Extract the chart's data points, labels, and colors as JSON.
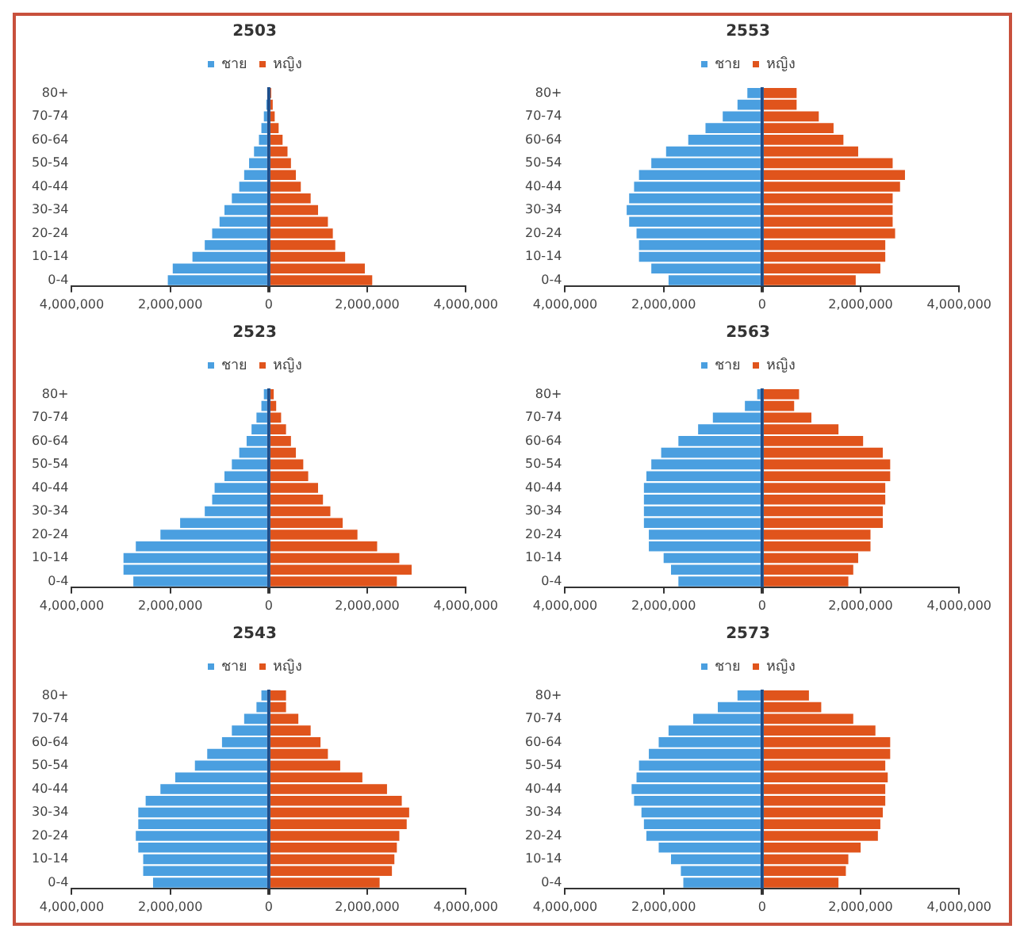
{
  "chart_data": [
    {
      "type": "bar",
      "title": "2503",
      "orientation": "horizontal",
      "stacked": true,
      "ref_lines": [
        {
          "axis": "x",
          "value": 0,
          "color": "#1f4e8a"
        }
      ],
      "legend": "top",
      "grid": false,
      "categories": [
        "80+",
        null,
        "70-74",
        null,
        "60-64",
        null,
        "50-54",
        null,
        "40-44",
        null,
        "30-34",
        null,
        "20-24",
        null,
        "10-14",
        null,
        "0-4"
      ],
      "xlim": [
        -4000000,
        4000000
      ],
      "xticks": [
        {
          "value": -4000000,
          "label": "4,000,000"
        },
        {
          "value": -2000000,
          "label": "2,000,000"
        },
        {
          "value": 0,
          "label": "0"
        },
        {
          "value": 2000000,
          "label": "2,000,000"
        },
        {
          "value": 4000000,
          "label": "4,000,000"
        }
      ],
      "series": [
        {
          "name": "ชาย",
          "color": "#4a9fe0",
          "values": [
            null,
            -50000,
            -100000,
            -150000,
            -200000,
            -300000,
            -400000,
            -500000,
            -600000,
            -750000,
            -900000,
            -1000000,
            -1150000,
            -1300000,
            -1550000,
            -1950000,
            -2050000
          ]
        },
        {
          "name": "หญิง",
          "color": "#e0541c",
          "values": [
            50000,
            80000,
            120000,
            200000,
            280000,
            380000,
            450000,
            550000,
            650000,
            850000,
            1000000,
            1200000,
            1300000,
            1350000,
            1550000,
            1950000,
            2100000
          ]
        }
      ]
    },
    {
      "type": "bar",
      "title": "2553",
      "orientation": "horizontal",
      "stacked": true,
      "ref_lines": [
        {
          "axis": "x",
          "value": 0,
          "color": "#1f4e8a"
        }
      ],
      "legend": "top",
      "grid": false,
      "categories": [
        "80+",
        null,
        "70-74",
        null,
        "60-64",
        null,
        "50-54",
        null,
        "40-44",
        null,
        "30-34",
        null,
        "20-24",
        null,
        "10-14",
        null,
        "0-4"
      ],
      "xlim": [
        -4000000,
        4000000
      ],
      "xticks": [
        {
          "value": -4000000,
          "label": "4,000,000"
        },
        {
          "value": -2000000,
          "label": "2,000,000"
        },
        {
          "value": 0,
          "label": "0"
        },
        {
          "value": 2000000,
          "label": "2,000,000"
        },
        {
          "value": 4000000,
          "label": "4,000,000"
        }
      ],
      "series": [
        {
          "name": "ชาย",
          "color": "#4a9fe0",
          "values": [
            -300000,
            -500000,
            -800000,
            -1150000,
            -1500000,
            -1950000,
            -2250000,
            -2500000,
            -2600000,
            -2700000,
            -2750000,
            -2700000,
            -2550000,
            -2500000,
            -2500000,
            -2250000,
            -1900000
          ]
        },
        {
          "name": "หญิง",
          "color": "#e0541c",
          "values": [
            700000,
            700000,
            1150000,
            1450000,
            1650000,
            1950000,
            2650000,
            2900000,
            2800000,
            2650000,
            2650000,
            2650000,
            2700000,
            2500000,
            2500000,
            2400000,
            1900000
          ]
        }
      ]
    },
    {
      "type": "bar",
      "title": "2523",
      "orientation": "horizontal",
      "stacked": true,
      "ref_lines": [
        {
          "axis": "x",
          "value": 0,
          "color": "#1f4e8a"
        }
      ],
      "legend": "top",
      "grid": false,
      "categories": [
        "80+",
        null,
        "70-74",
        null,
        "60-64",
        null,
        "50-54",
        null,
        "40-44",
        null,
        "30-34",
        null,
        "20-24",
        null,
        "10-14",
        null,
        "0-4"
      ],
      "xlim": [
        -4000000,
        4000000
      ],
      "xticks": [
        {
          "value": -4000000,
          "label": "4,000,000"
        },
        {
          "value": -2000000,
          "label": "2,000,000"
        },
        {
          "value": 0,
          "label": "0"
        },
        {
          "value": 2000000,
          "label": "2,000,000"
        },
        {
          "value": 4000000,
          "label": "4,000,000"
        }
      ],
      "series": [
        {
          "name": "ชาย",
          "color": "#4a9fe0",
          "values": [
            -100000,
            -150000,
            -250000,
            -350000,
            -450000,
            -600000,
            -750000,
            -900000,
            -1100000,
            -1150000,
            -1300000,
            -1800000,
            -2200000,
            -2700000,
            -2950000,
            -2950000,
            -2750000
          ]
        },
        {
          "name": "หญิง",
          "color": "#e0541c",
          "values": [
            100000,
            150000,
            250000,
            350000,
            450000,
            550000,
            700000,
            800000,
            1000000,
            1100000,
            1250000,
            1500000,
            1800000,
            2200000,
            2650000,
            2900000,
            2600000
          ]
        }
      ]
    },
    {
      "type": "bar",
      "title": "2563",
      "orientation": "horizontal",
      "stacked": true,
      "ref_lines": [
        {
          "axis": "x",
          "value": 0,
          "color": "#1f4e8a"
        }
      ],
      "legend": "top",
      "grid": false,
      "categories": [
        "80+",
        null,
        "70-74",
        null,
        "60-64",
        null,
        "50-54",
        null,
        "40-44",
        null,
        "30-34",
        null,
        "20-24",
        null,
        "10-14",
        null,
        "0-4"
      ],
      "xlim": [
        -4000000,
        4000000
      ],
      "xticks": [
        {
          "value": -4000000,
          "label": "4,000,000"
        },
        {
          "value": -2000000,
          "label": "2,000,000"
        },
        {
          "value": 0,
          "label": "0"
        },
        {
          "value": 2000000,
          "label": "2,000,000"
        },
        {
          "value": 4000000,
          "label": "4,000,000"
        }
      ],
      "series": [
        {
          "name": "ชาย",
          "color": "#4a9fe0",
          "values": [
            -100000,
            -350000,
            -1000000,
            -1300000,
            -1700000,
            -2050000,
            -2250000,
            -2350000,
            -2400000,
            -2400000,
            -2400000,
            -2400000,
            -2300000,
            -2300000,
            -2000000,
            -1850000,
            -1700000
          ]
        },
        {
          "name": "หญิง",
          "color": "#e0541c",
          "values": [
            750000,
            650000,
            1000000,
            1550000,
            2050000,
            2450000,
            2600000,
            2600000,
            2500000,
            2500000,
            2450000,
            2450000,
            2200000,
            2200000,
            1950000,
            1850000,
            1750000
          ]
        }
      ]
    },
    {
      "type": "bar",
      "title": "2543",
      "orientation": "horizontal",
      "stacked": true,
      "ref_lines": [
        {
          "axis": "x",
          "value": 0,
          "color": "#1f4e8a"
        }
      ],
      "legend": "top",
      "grid": false,
      "categories": [
        "80+",
        null,
        "70-74",
        null,
        "60-64",
        null,
        "50-54",
        null,
        "40-44",
        null,
        "30-34",
        null,
        "20-24",
        null,
        "10-14",
        null,
        "0-4"
      ],
      "xlim": [
        -4000000,
        4000000
      ],
      "xticks": [
        {
          "value": -4000000,
          "label": "4,000,000"
        },
        {
          "value": -2000000,
          "label": "2,000,000"
        },
        {
          "value": 0,
          "label": "0"
        },
        {
          "value": 2000000,
          "label": "2,000,000"
        },
        {
          "value": 4000000,
          "label": "4,000,000"
        }
      ],
      "series": [
        {
          "name": "ชาย",
          "color": "#4a9fe0",
          "values": [
            -150000,
            -250000,
            -500000,
            -750000,
            -950000,
            -1250000,
            -1500000,
            -1900000,
            -2200000,
            -2500000,
            -2650000,
            -2650000,
            -2700000,
            -2650000,
            -2550000,
            -2550000,
            -2350000
          ]
        },
        {
          "name": "หญิง",
          "color": "#e0541c",
          "values": [
            350000,
            350000,
            600000,
            850000,
            1050000,
            1200000,
            1450000,
            1900000,
            2400000,
            2700000,
            2850000,
            2800000,
            2650000,
            2600000,
            2550000,
            2500000,
            2250000
          ]
        }
      ]
    },
    {
      "type": "bar",
      "title": "2573",
      "orientation": "horizontal",
      "stacked": true,
      "ref_lines": [
        {
          "axis": "x",
          "value": 0,
          "color": "#1f4e8a"
        }
      ],
      "legend": "top",
      "grid": false,
      "categories": [
        "80+",
        null,
        "70-74",
        null,
        "60-64",
        null,
        "50-54",
        null,
        "40-44",
        null,
        "30-34",
        null,
        "20-24",
        null,
        "10-14",
        null,
        "0-4"
      ],
      "xlim": [
        -4000000,
        4000000
      ],
      "xticks": [
        {
          "value": -4000000,
          "label": "4,000,000"
        },
        {
          "value": -2000000,
          "label": "2,000,000"
        },
        {
          "value": 0,
          "label": "0"
        },
        {
          "value": 2000000,
          "label": "2,000,000"
        },
        {
          "value": 4000000,
          "label": "4,000,000"
        }
      ],
      "series": [
        {
          "name": "ชาย",
          "color": "#4a9fe0",
          "values": [
            -500000,
            -900000,
            -1400000,
            -1900000,
            -2100000,
            -2300000,
            -2500000,
            -2550000,
            -2650000,
            -2600000,
            -2450000,
            -2400000,
            -2350000,
            -2100000,
            -1850000,
            -1650000,
            -1600000
          ]
        },
        {
          "name": "หญิง",
          "color": "#e0541c",
          "values": [
            950000,
            1200000,
            1850000,
            2300000,
            2600000,
            2600000,
            2500000,
            2550000,
            2500000,
            2500000,
            2450000,
            2400000,
            2350000,
            2000000,
            1750000,
            1700000,
            1550000
          ]
        }
      ]
    }
  ]
}
